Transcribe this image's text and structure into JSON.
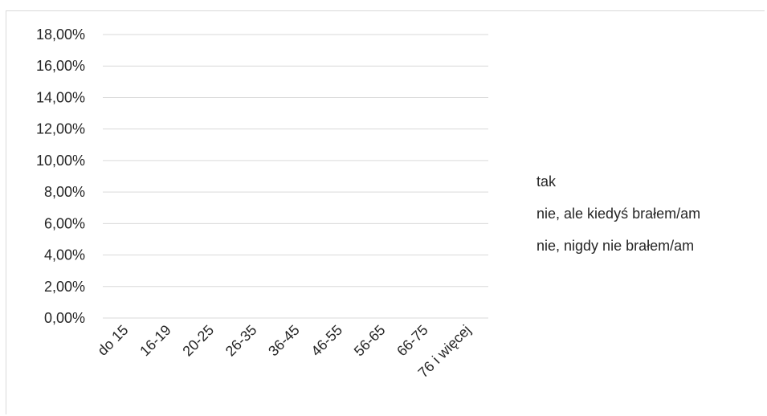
{
  "chart_data": {
    "type": "bar",
    "categories": [
      "do 15",
      "16-19",
      "20-25",
      "26-35",
      "36-45",
      "46-55",
      "56-65",
      "66-75",
      "76 i więcej"
    ],
    "series": [
      {
        "name": "tak",
        "values": [
          0,
          0,
          0,
          0,
          0,
          0,
          0,
          0,
          0
        ]
      },
      {
        "name": "nie, ale kiedyś brałem/am",
        "values": [
          0,
          0,
          0,
          0,
          0,
          0,
          0,
          0,
          0
        ]
      },
      {
        "name": "nie, nigdy nie brałem/am",
        "values": [
          0,
          0,
          0,
          0,
          0,
          0,
          0,
          0,
          0
        ]
      }
    ],
    "y_ticks": [
      "0,00%",
      "2,00%",
      "4,00%",
      "6,00%",
      "8,00%",
      "10,00%",
      "12,00%",
      "14,00%",
      "16,00%",
      "18,00%"
    ],
    "ylim": [
      0,
      18
    ],
    "grid": true,
    "legend_position": "right",
    "colors": {
      "grid": "#d9d9d9",
      "text": "#262626"
    }
  }
}
